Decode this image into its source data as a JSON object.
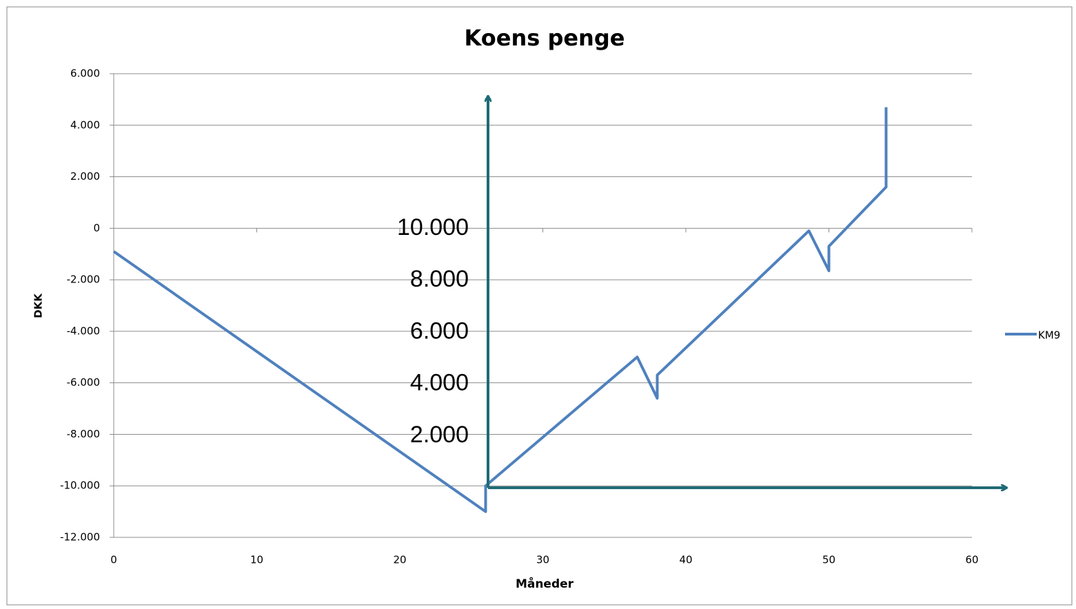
{
  "chart_data": {
    "type": "line",
    "title": "Koens penge",
    "x_label": "Måneder",
    "y_label": "DKK",
    "x": [
      0,
      26,
      26,
      36.6,
      38,
      38,
      48.6,
      50,
      50,
      54,
      54
    ],
    "series": [
      {
        "name": "KM9",
        "color": "#4f81bd",
        "values": [
          -900,
          -11000,
          -10000,
          -5000,
          -6600,
          -5700,
          -100,
          -1650,
          -700,
          1600,
          4700
        ]
      }
    ],
    "xlim": [
      0,
      60
    ],
    "xticks": [
      0,
      10,
      20,
      30,
      40,
      50,
      60
    ],
    "ylim": [
      -12000,
      6000
    ],
    "yticks": [
      {
        "value": -12000,
        "label": "-12.000"
      },
      {
        "value": -10000,
        "label": "-10.000"
      },
      {
        "value": -8000,
        "label": "-8.000"
      },
      {
        "value": -6000,
        "label": "-6.000"
      },
      {
        "value": -4000,
        "label": "-4.000"
      },
      {
        "value": -2000,
        "label": "-2.000"
      },
      0,
      {
        "value": 2000,
        "label": "2.000"
      },
      {
        "value": 4000,
        "label": "4.000"
      },
      {
        "value": 6000,
        "label": "6.000"
      }
    ],
    "grid": true,
    "legend": "right",
    "overlay_axis": {
      "color": "#1f6b75",
      "ylim": [
        0,
        10000
      ],
      "yticks": [
        {
          "value": 10000,
          "label": "10.000"
        },
        {
          "value": 8000,
          "label": "8.000"
        },
        {
          "value": 6000,
          "label": "6.000"
        },
        {
          "value": 4000,
          "label": "4.000"
        },
        {
          "value": 2000,
          "label": "2.000"
        }
      ]
    }
  }
}
